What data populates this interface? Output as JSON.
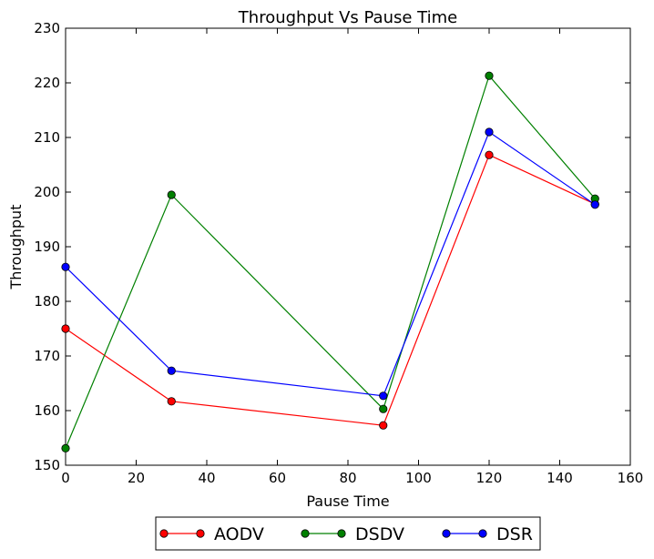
{
  "chart_data": {
    "type": "line",
    "title": "Throughput Vs Pause Time",
    "xlabel": "Pause Time",
    "ylabel": "Throughput",
    "xlim": [
      0,
      160
    ],
    "ylim": [
      150,
      230
    ],
    "xticks": [
      0,
      20,
      40,
      60,
      80,
      100,
      120,
      140,
      160
    ],
    "yticks": [
      150,
      160,
      170,
      180,
      190,
      200,
      210,
      220,
      230
    ],
    "x": [
      0,
      30,
      90,
      120,
      150
    ],
    "series": [
      {
        "name": "AODV",
        "color": "#ff0000",
        "values": [
          175.0,
          161.7,
          157.3,
          206.8,
          197.8
        ]
      },
      {
        "name": "DSDV",
        "color": "#008000",
        "values": [
          153.1,
          199.5,
          160.3,
          221.3,
          198.8
        ]
      },
      {
        "name": "DSR",
        "color": "#0000ff",
        "values": [
          186.3,
          167.3,
          162.7,
          211.0,
          197.7
        ]
      }
    ],
    "grid": false,
    "legend_position": "bottom-center"
  }
}
